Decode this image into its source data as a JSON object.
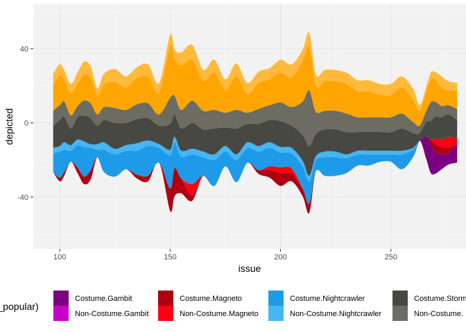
{
  "chart_data": {
    "type": "area",
    "subtype": "streamgraph",
    "xlabel": "issue",
    "ylabel": "depicted",
    "xlim": [
      88,
      284
    ],
    "ylim": [
      -68,
      64
    ],
    "x_ticks": [
      100,
      150,
      200,
      250
    ],
    "y_ticks": [
      -40,
      0,
      40
    ],
    "grid": true,
    "panel_background": "#f2f2f2",
    "legend": {
      "position": "bottom",
      "title": "ar_popular)",
      "entries": [
        {
          "label": "Costume.Gambit",
          "color": "#7b0082"
        },
        {
          "label": "Non-Costume.Gambit",
          "color": "#c800c8"
        },
        {
          "label": "Costume.Magneto",
          "color": "#b00010"
        },
        {
          "label": "Non-Costume.Magneto",
          "color": "#ff0012"
        },
        {
          "label": "Costume.Nightcrawler",
          "color": "#1e9be8"
        },
        {
          "label": "Non-Costume.Nightcrawler",
          "color": "#45b6f2"
        },
        {
          "label": "Costume.Storm",
          "color": "#484843"
        },
        {
          "label": "Non-Costume.",
          "color": "#6c6c62"
        }
      ]
    },
    "x": [
      97,
      100,
      102,
      105,
      108,
      111,
      114,
      117,
      120,
      125,
      130,
      135,
      140,
      145,
      150,
      152,
      155,
      160,
      165,
      170,
      175,
      180,
      185,
      190,
      195,
      200,
      205,
      210,
      213,
      216,
      220,
      225,
      230,
      235,
      240,
      245,
      250,
      255,
      260,
      263,
      266,
      268,
      270,
      273,
      276,
      280
    ],
    "series": [
      {
        "name": "Costume.Gambit",
        "color": "#7b0082",
        "values": [
          0,
          0,
          0,
          0,
          0,
          0,
          0,
          0,
          0,
          0,
          0,
          0,
          0,
          0,
          0,
          0,
          0,
          0,
          0,
          0,
          0,
          0,
          0,
          0,
          0,
          0,
          0,
          0,
          0,
          0,
          0,
          0,
          0,
          0,
          0,
          0,
          0,
          0,
          0,
          0,
          12,
          16,
          12,
          8,
          6,
          10
        ]
      },
      {
        "name": "Non-Costume.Gambit",
        "color": "#c800c8",
        "values": [
          0,
          0,
          0,
          0,
          0,
          0,
          0,
          0,
          0,
          0,
          0,
          0,
          0,
          0,
          0,
          0,
          0,
          0,
          0,
          0,
          0,
          0,
          0,
          0,
          0,
          0,
          0,
          0,
          0,
          0,
          0,
          0,
          0,
          0,
          0,
          0,
          0,
          0,
          0,
          0,
          0,
          0,
          0,
          0,
          0,
          0
        ]
      },
      {
        "name": "Costume.Magneto",
        "color": "#b00010",
        "values": [
          0,
          2,
          2,
          0,
          3,
          4,
          5,
          0,
          0,
          0,
          0,
          2,
          3,
          0,
          12,
          15,
          8,
          3,
          0,
          0,
          0,
          0,
          0,
          2,
          4,
          7,
          4,
          4,
          5,
          0,
          0,
          0,
          0,
          0,
          0,
          0,
          0,
          0,
          0,
          0,
          0,
          2,
          4,
          4,
          3,
          0
        ]
      },
      {
        "name": "Non-Costume.Magneto",
        "color": "#ff0012",
        "values": [
          0,
          0,
          0,
          0,
          0,
          0,
          0,
          0,
          0,
          0,
          0,
          0,
          0,
          0,
          0,
          0,
          0,
          6,
          0,
          0,
          0,
          0,
          0,
          0,
          2,
          3,
          3,
          0,
          0,
          0,
          0,
          0,
          0,
          0,
          0,
          0,
          0,
          0,
          0,
          0,
          0,
          0,
          3,
          4,
          6,
          3
        ]
      },
      {
        "name": "Costume.Nightcrawler",
        "color": "#1e9be8",
        "values": [
          10,
          14,
          12,
          6,
          12,
          16,
          12,
          4,
          12,
          12,
          10,
          13,
          16,
          8,
          18,
          14,
          12,
          16,
          10,
          14,
          8,
          12,
          8,
          10,
          10,
          8,
          8,
          12,
          12,
          6,
          10,
          10,
          8,
          6,
          6,
          4,
          4,
          8,
          4,
          0,
          0,
          0,
          0,
          0,
          0,
          0
        ]
      },
      {
        "name": "Non-Costume.Nightcrawler",
        "color": "#45b6f2",
        "values": [
          3,
          3,
          4,
          3,
          3,
          3,
          2,
          3,
          4,
          3,
          3,
          4,
          3,
          2,
          3,
          3,
          3,
          3,
          3,
          3,
          3,
          3,
          3,
          3,
          3,
          3,
          3,
          3,
          3,
          2,
          3,
          3,
          2,
          2,
          2,
          2,
          2,
          2,
          1,
          0,
          0,
          0,
          0,
          0,
          0,
          0
        ]
      },
      {
        "name": "Costume.Storm",
        "color": "#484843",
        "values": [
          12,
          14,
          14,
          9,
          12,
          14,
          14,
          10,
          12,
          14,
          12,
          13,
          12,
          10,
          14,
          12,
          12,
          14,
          12,
          14,
          10,
          14,
          10,
          12,
          12,
          14,
          12,
          14,
          16,
          12,
          12,
          12,
          12,
          10,
          10,
          10,
          10,
          12,
          8,
          4,
          8,
          10,
          12,
          12,
          12,
          10
        ]
      },
      {
        "name": "Non-Costume.",
        "color": "#6c6c62",
        "values": [
          8,
          8,
          8,
          7,
          6,
          8,
          8,
          6,
          7,
          8,
          7,
          8,
          8,
          6,
          14,
          10,
          10,
          12,
          10,
          10,
          8,
          10,
          6,
          8,
          8,
          10,
          10,
          18,
          30,
          12,
          10,
          10,
          10,
          8,
          8,
          8,
          8,
          8,
          6,
          4,
          6,
          10,
          8,
          6,
          5,
          6
        ]
      },
      {
        "name": "",
        "color": "#fea501",
        "values": [
          14,
          16,
          12,
          12,
          12,
          14,
          14,
          10,
          12,
          14,
          12,
          14,
          14,
          12,
          28,
          20,
          24,
          22,
          16,
          20,
          12,
          18,
          10,
          14,
          14,
          16,
          16,
          22,
          24,
          14,
          16,
          16,
          16,
          14,
          14,
          12,
          12,
          14,
          12,
          8,
          10,
          12,
          12,
          10,
          8,
          10
        ]
      },
      {
        "name": "",
        "color": "#ffba3c",
        "values": [
          6,
          6,
          5,
          5,
          6,
          7,
          6,
          4,
          6,
          7,
          6,
          6,
          7,
          5,
          6,
          5,
          7,
          8,
          6,
          7,
          6,
          7,
          6,
          6,
          6,
          7,
          7,
          6,
          7,
          6,
          6,
          6,
          6,
          6,
          6,
          6,
          6,
          6,
          6,
          3,
          3,
          4,
          4,
          6,
          5,
          4
        ]
      }
    ]
  }
}
